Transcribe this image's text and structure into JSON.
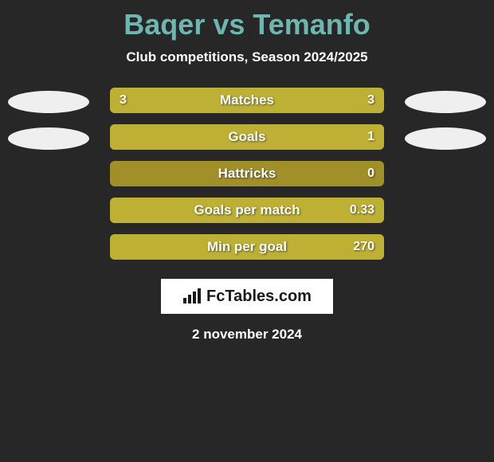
{
  "title": "Baqer vs Temanfo",
  "title_color": "#6fb6b0",
  "subtitle": "Club competitions, Season 2024/2025",
  "subtitle_color": "#ffffff",
  "background_color": "#272727",
  "logo_text": "FcTables.com",
  "date": "2 november 2024",
  "date_color": "#ffffff",
  "disc_colors": {
    "left": "#efefef",
    "right": "#efefef"
  },
  "track_color": "#a18f2a",
  "fill_color": "#bdb035",
  "rows": [
    {
      "label": "Matches",
      "left_text": "3",
      "right_text": "3",
      "left_pct": 50,
      "right_pct": 50,
      "show_discs": true
    },
    {
      "label": "Goals",
      "left_text": "",
      "right_text": "1",
      "left_pct": 0,
      "right_pct": 100,
      "show_discs": true
    },
    {
      "label": "Hattricks",
      "left_text": "",
      "right_text": "0",
      "left_pct": 0,
      "right_pct": 0,
      "show_discs": false
    },
    {
      "label": "Goals per match",
      "left_text": "",
      "right_text": "0.33",
      "left_pct": 0,
      "right_pct": 100,
      "show_discs": false
    },
    {
      "label": "Min per goal",
      "left_text": "",
      "right_text": "270",
      "left_pct": 0,
      "right_pct": 100,
      "show_discs": false
    }
  ]
}
